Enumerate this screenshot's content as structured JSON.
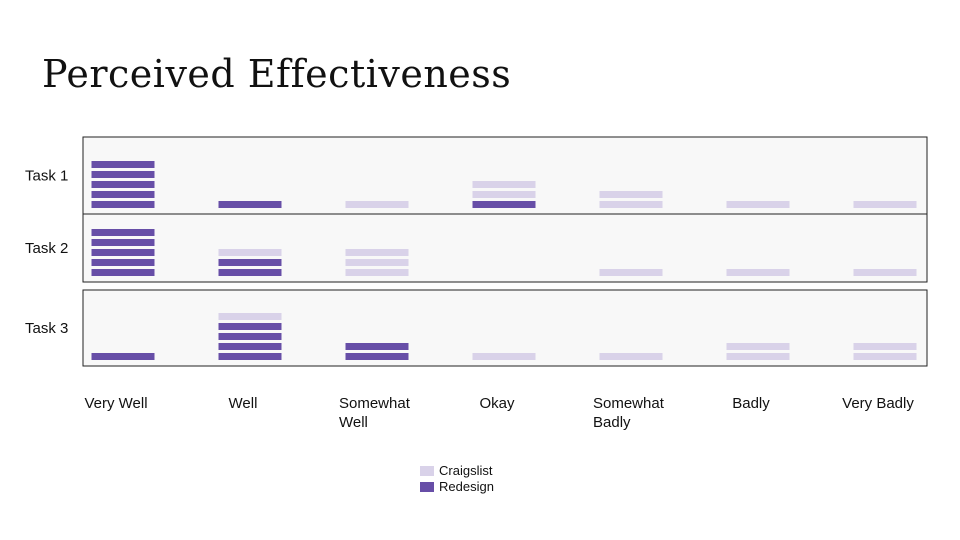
{
  "title": "Perceived Effectiveness",
  "chart_data": {
    "type": "bar",
    "title": "Perceived Effectiveness",
    "categories": [
      "Very Well",
      "Well",
      "Somewhat Well",
      "Okay",
      "Somewhat Badly",
      "Badly",
      "Very Badly"
    ],
    "category_lines": [
      [
        "Very Well"
      ],
      [
        "Well"
      ],
      [
        "Somewhat",
        "Well"
      ],
      [
        "Okay"
      ],
      [
        "Somewhat",
        "Badly"
      ],
      [
        "Badly"
      ],
      [
        "Very Badly"
      ]
    ],
    "tasks": [
      {
        "name": "Task 1",
        "stacks": [
          [
            "Redesign",
            "Redesign",
            "Redesign",
            "Redesign",
            "Redesign"
          ],
          [
            "Redesign"
          ],
          [
            "Craigslist"
          ],
          [
            "Redesign",
            "Craigslist",
            "Craigslist"
          ],
          [
            "Craigslist",
            "Craigslist"
          ],
          [
            "Craigslist"
          ],
          [
            "Craigslist"
          ]
        ]
      },
      {
        "name": "Task 2",
        "stacks": [
          [
            "Redesign",
            "Redesign",
            "Redesign",
            "Redesign",
            "Redesign"
          ],
          [
            "Redesign",
            "Redesign",
            "Craigslist"
          ],
          [
            "Craigslist",
            "Craigslist",
            "Craigslist"
          ],
          [],
          [
            "Craigslist"
          ],
          [
            "Craigslist"
          ],
          [
            "Craigslist"
          ]
        ]
      },
      {
        "name": "Task 3",
        "stacks": [
          [
            "Redesign"
          ],
          [
            "Redesign",
            "Redesign",
            "Redesign",
            "Redesign",
            "Craigslist"
          ],
          [
            "Redesign",
            "Redesign"
          ],
          [
            "Craigslist"
          ],
          [
            "Craigslist"
          ],
          [
            "Craigslist",
            "Craigslist"
          ],
          [
            "Craigslist",
            "Craigslist"
          ]
        ]
      }
    ],
    "series": [
      {
        "name": "Craigslist",
        "color": "#d9d2e9",
        "values": {
          "Task 1": [
            0,
            0,
            1,
            2,
            2,
            1,
            1
          ],
          "Task 2": [
            0,
            1,
            3,
            0,
            1,
            1,
            1
          ],
          "Task 3": [
            0,
            1,
            0,
            1,
            1,
            2,
            2
          ]
        }
      },
      {
        "name": "Redesign",
        "color": "#674ea7",
        "values": {
          "Task 1": [
            5,
            1,
            0,
            1,
            0,
            0,
            0
          ],
          "Task 2": [
            5,
            2,
            0,
            0,
            0,
            0,
            0
          ],
          "Task 3": [
            1,
            4,
            2,
            0,
            0,
            0,
            0
          ]
        }
      }
    ],
    "legend": {
      "position": "bottom-center",
      "entries": [
        "Craigslist",
        "Redesign"
      ]
    },
    "panel_background": "#f8f8f8",
    "grid": false
  }
}
